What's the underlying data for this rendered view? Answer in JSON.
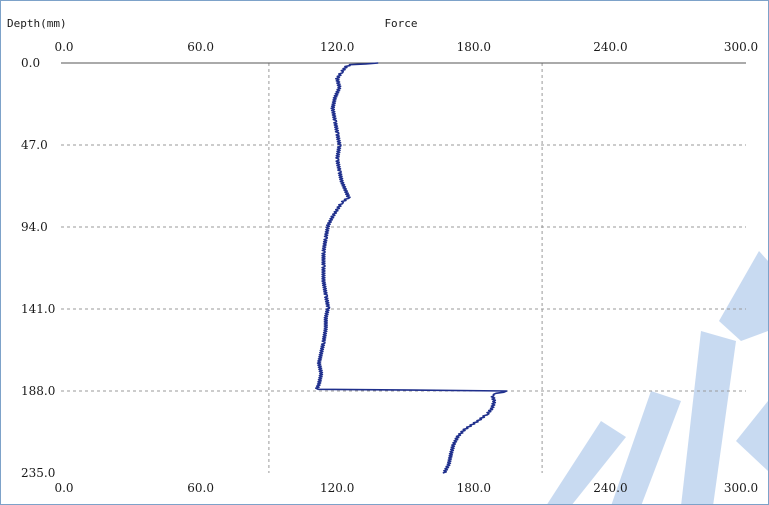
{
  "chart_data": {
    "type": "line",
    "title": "Force",
    "ylabel": "Depth(mm)",
    "x_ticks": [
      "0.0",
      "60.0",
      "120.0",
      "180.0",
      "240.0",
      "300.0"
    ],
    "y_ticks": [
      "0.0",
      "47.0",
      "94.0",
      "141.0",
      "188.0",
      "235.0"
    ],
    "xlim": [
      0,
      300
    ],
    "ylim": [
      0,
      235
    ],
    "grid": true,
    "series": [
      {
        "color": "#1f2f8c",
        "points": [
          [
            138,
            0
          ],
          [
            126,
            1
          ],
          [
            124,
            2
          ],
          [
            122,
            5
          ],
          [
            120,
            9
          ],
          [
            121,
            14
          ],
          [
            119,
            20
          ],
          [
            118,
            26
          ],
          [
            119,
            33
          ],
          [
            120,
            40
          ],
          [
            121,
            47
          ],
          [
            120,
            55
          ],
          [
            121,
            62
          ],
          [
            122,
            68
          ],
          [
            124,
            74
          ],
          [
            125,
            77
          ],
          [
            122,
            80
          ],
          [
            120,
            84
          ],
          [
            118,
            88
          ],
          [
            116,
            93
          ],
          [
            115,
            100
          ],
          [
            114,
            108
          ],
          [
            114,
            116
          ],
          [
            114,
            125
          ],
          [
            115,
            133
          ],
          [
            116,
            140
          ],
          [
            115,
            146
          ],
          [
            115,
            152
          ],
          [
            114,
            160
          ],
          [
            113,
            166
          ],
          [
            112,
            172
          ],
          [
            113,
            178
          ],
          [
            112,
            184
          ],
          [
            111,
            187
          ],
          [
            195,
            188
          ],
          [
            188,
            190
          ],
          [
            189,
            194
          ],
          [
            188,
            198
          ],
          [
            186,
            201
          ],
          [
            182,
            205
          ],
          [
            176,
            210
          ],
          [
            173,
            214
          ],
          [
            171,
            219
          ],
          [
            170,
            224
          ],
          [
            169,
            230
          ],
          [
            167,
            235
          ]
        ]
      }
    ]
  }
}
